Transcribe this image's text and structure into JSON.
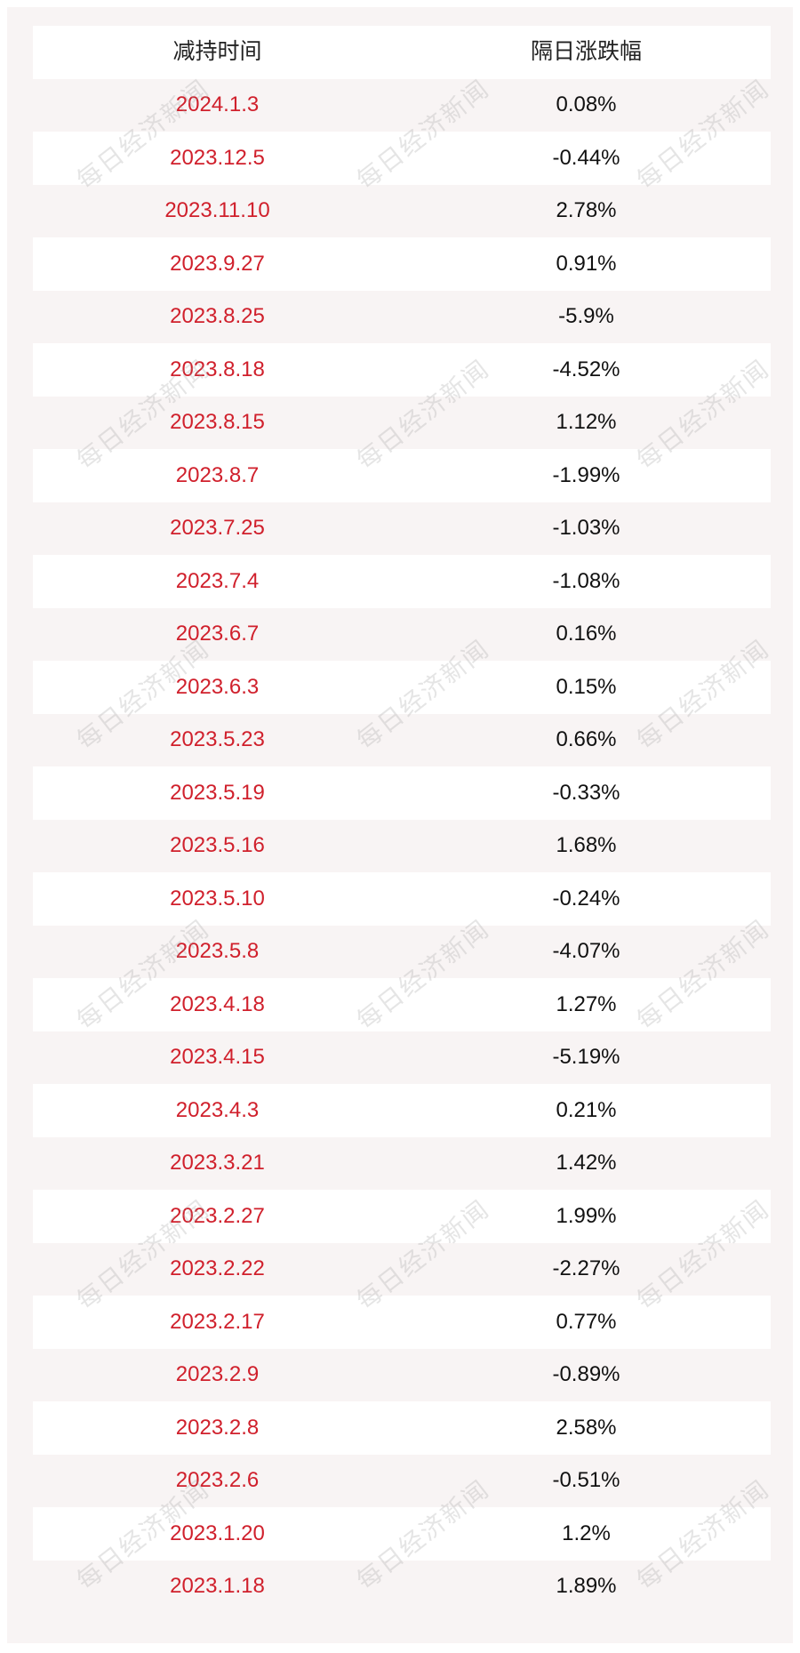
{
  "table": {
    "headers": [
      "减持时间",
      "隔日涨跌幅"
    ],
    "rows": [
      {
        "date": "2024.1.3",
        "change": "0.08%"
      },
      {
        "date": "2023.12.5",
        "change": "-0.44%"
      },
      {
        "date": "2023.11.10",
        "change": "2.78%"
      },
      {
        "date": "2023.9.27",
        "change": "0.91%"
      },
      {
        "date": "2023.8.25",
        "change": "-5.9%"
      },
      {
        "date": "2023.8.18",
        "change": "-4.52%"
      },
      {
        "date": "2023.8.15",
        "change": "1.12%"
      },
      {
        "date": "2023.8.7",
        "change": "-1.99%"
      },
      {
        "date": "2023.7.25",
        "change": "-1.03%"
      },
      {
        "date": "2023.7.4",
        "change": "-1.08%"
      },
      {
        "date": "2023.6.7",
        "change": "0.16%"
      },
      {
        "date": "2023.6.3",
        "change": "0.15%"
      },
      {
        "date": "2023.5.23",
        "change": "0.66%"
      },
      {
        "date": "2023.5.19",
        "change": "-0.33%"
      },
      {
        "date": "2023.5.16",
        "change": "1.68%"
      },
      {
        "date": "2023.5.10",
        "change": "-0.24%"
      },
      {
        "date": "2023.5.8",
        "change": "-4.07%"
      },
      {
        "date": "2023.4.18",
        "change": "1.27%"
      },
      {
        "date": "2023.4.15",
        "change": "-5.19%"
      },
      {
        "date": "2023.4.3",
        "change": "0.21%"
      },
      {
        "date": "2023.3.21",
        "change": "1.42%"
      },
      {
        "date": "2023.2.27",
        "change": "1.99%"
      },
      {
        "date": "2023.2.22",
        "change": "-2.27%"
      },
      {
        "date": "2023.2.17",
        "change": "0.77%"
      },
      {
        "date": "2023.2.9",
        "change": "-0.89%"
      },
      {
        "date": "2023.2.8",
        "change": "2.58%"
      },
      {
        "date": "2023.2.6",
        "change": "-0.51%"
      },
      {
        "date": "2023.1.20",
        "change": "1.2%"
      },
      {
        "date": "2023.1.18",
        "change": "1.89%"
      }
    ]
  },
  "watermark": "每日经济新闻",
  "colors": {
    "date_text": "#d0202c",
    "value_text": "#111111",
    "stripe": "#f8f4f4",
    "row_bg": "#ffffff"
  }
}
